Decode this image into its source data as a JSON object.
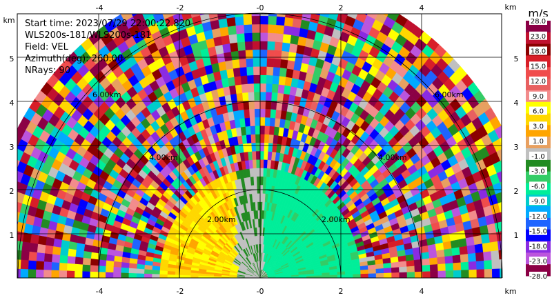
{
  "info": {
    "start_time": "Start time: 2023/07/29 22:00:22.820",
    "instrument": "WLS200s-181/WLS200s-181",
    "field": "Field: VEL",
    "azimuth": "Azimuth(deg): 260.00",
    "nrays": "NRays: 90"
  },
  "axis": {
    "x_unit": "km",
    "y_unit": "km",
    "x_ticks": [
      "-4",
      "-2",
      "-0",
      "2",
      "4"
    ],
    "y_ticks": [
      "1",
      "2",
      "3",
      "4",
      "5"
    ]
  },
  "rings": {
    "labels": [
      "2.00km",
      "2.00km",
      "4.00km",
      "4.00km",
      "6.00km",
      "6.00km"
    ]
  },
  "colorbar": {
    "unit": "m/s",
    "colors": [
      "#8b0045",
      "#c0102e",
      "#8b0000",
      "#d81e28",
      "#f04c4c",
      "#e86060",
      "#f28c8c",
      "#ffff00",
      "#ffd700",
      "#ffa500",
      "#e8a060",
      "#c0c0c0",
      "#228b22",
      "#33cc66",
      "#00ee99",
      "#00cccc",
      "#00aaff",
      "#1e64ff",
      "#0000ff",
      "#8a2be2",
      "#bb55dd",
      "#8b0045"
    ],
    "labels": [
      "28.0",
      "23.0",
      "18.0",
      "15.0",
      "12.0",
      "9.0",
      "6.0",
      "3.0",
      "1.0",
      "-1.0",
      "-3.0",
      "-6.0",
      "-9.0",
      "-12.0",
      "-15.0",
      "-18.0",
      "-23.0",
      "-28.0"
    ]
  }
}
